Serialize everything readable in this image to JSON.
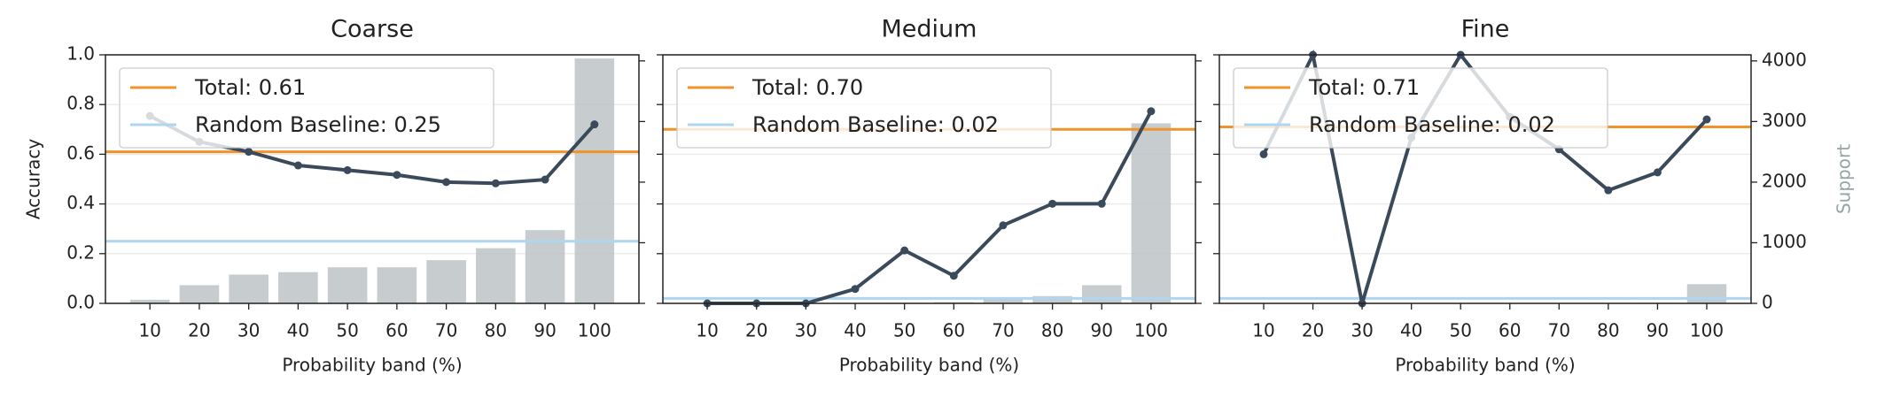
{
  "chart_data": [
    {
      "type": "bar_line",
      "title": "Coarse",
      "xlabel": "Probability band (%)",
      "ylabel": "Accuracy",
      "categories": [
        10,
        20,
        30,
        40,
        50,
        60,
        70,
        80,
        90,
        100
      ],
      "series": [
        {
          "name": "Support",
          "type": "bar",
          "axis": "y2",
          "color": "#bdc3c7",
          "values": [
            60,
            300,
            475,
            515,
            595,
            595,
            713,
            910,
            1208,
            4040
          ]
        },
        {
          "name": "Accuracy",
          "type": "line",
          "color": "#3b4a5a",
          "values": [
            0.754,
            0.65,
            0.61,
            0.555,
            0.536,
            0.517,
            0.488,
            0.483,
            0.498,
            0.72
          ]
        }
      ],
      "reference_lines": [
        {
          "name": "Total: 0.61",
          "value": 0.61,
          "color": "#f0932b"
        },
        {
          "name": "Random Baseline: 0.25",
          "value": 0.25,
          "color": "#aed6f1"
        }
      ],
      "ylim": [
        0,
        1
      ],
      "yticks": [
        {
          "value": 0,
          "label": "0.0"
        },
        {
          "value": 0.2,
          "label": "0.2"
        },
        {
          "value": 0.4,
          "label": "0.4"
        },
        {
          "value": 0.6,
          "label": "0.6"
        },
        {
          "value": 0.8,
          "label": "0.8"
        },
        {
          "value": 1,
          "label": "1.0"
        }
      ],
      "y2lim": [
        0,
        4100
      ],
      "grid": true,
      "legend": "upper left"
    },
    {
      "type": "bar_line",
      "title": "Medium",
      "xlabel": "Probability band (%)",
      "categories": [
        10,
        20,
        30,
        40,
        50,
        60,
        70,
        80,
        90,
        100
      ],
      "series": [
        {
          "name": "Support",
          "type": "bar",
          "axis": "y2",
          "color": "#bdc3c7",
          "values": [
            2,
            3,
            5,
            8,
            10,
            20,
            80,
            120,
            300,
            2970
          ]
        },
        {
          "name": "Accuracy",
          "type": "line",
          "color": "#3b4a5a",
          "values": [
            0,
            0,
            0,
            0.058,
            0.213,
            0.111,
            0.314,
            0.401,
            0.401,
            0.773
          ]
        }
      ],
      "reference_lines": [
        {
          "name": "Total: 0.70",
          "value": 0.7,
          "color": "#f0932b"
        },
        {
          "name": "Random Baseline: 0.02",
          "value": 0.02,
          "color": "#aed6f1"
        }
      ],
      "ylim": [
        0,
        1
      ],
      "y2lim": [
        0,
        4100
      ],
      "grid": true,
      "legend": "upper left"
    },
    {
      "type": "bar_line",
      "title": "Fine",
      "xlabel": "Probability band (%)",
      "y2label": "Support",
      "categories": [
        10,
        20,
        30,
        40,
        50,
        60,
        70,
        80,
        90,
        100
      ],
      "series": [
        {
          "name": "Support",
          "type": "bar",
          "axis": "y2",
          "color": "#bdc3c7",
          "values": [
            2,
            2,
            2,
            3,
            3,
            5,
            5,
            8,
            10,
            317
          ]
        },
        {
          "name": "Accuracy",
          "type": "line",
          "color": "#3b4a5a",
          "values": [
            0.6,
            1.0,
            0,
            0.667,
            1.0,
            0.75,
            0.62,
            0.455,
            0.527,
            0.74
          ]
        }
      ],
      "reference_lines": [
        {
          "name": "Total: 0.71",
          "value": 0.71,
          "color": "#f0932b"
        },
        {
          "name": "Random Baseline: 0.02",
          "value": 0.02,
          "color": "#aed6f1"
        }
      ],
      "ylim": [
        0,
        1
      ],
      "y2lim": [
        0,
        4100
      ],
      "y2ticks": [
        0,
        1000,
        2000,
        3000,
        4000
      ],
      "grid": true,
      "legend": "upper left"
    }
  ]
}
